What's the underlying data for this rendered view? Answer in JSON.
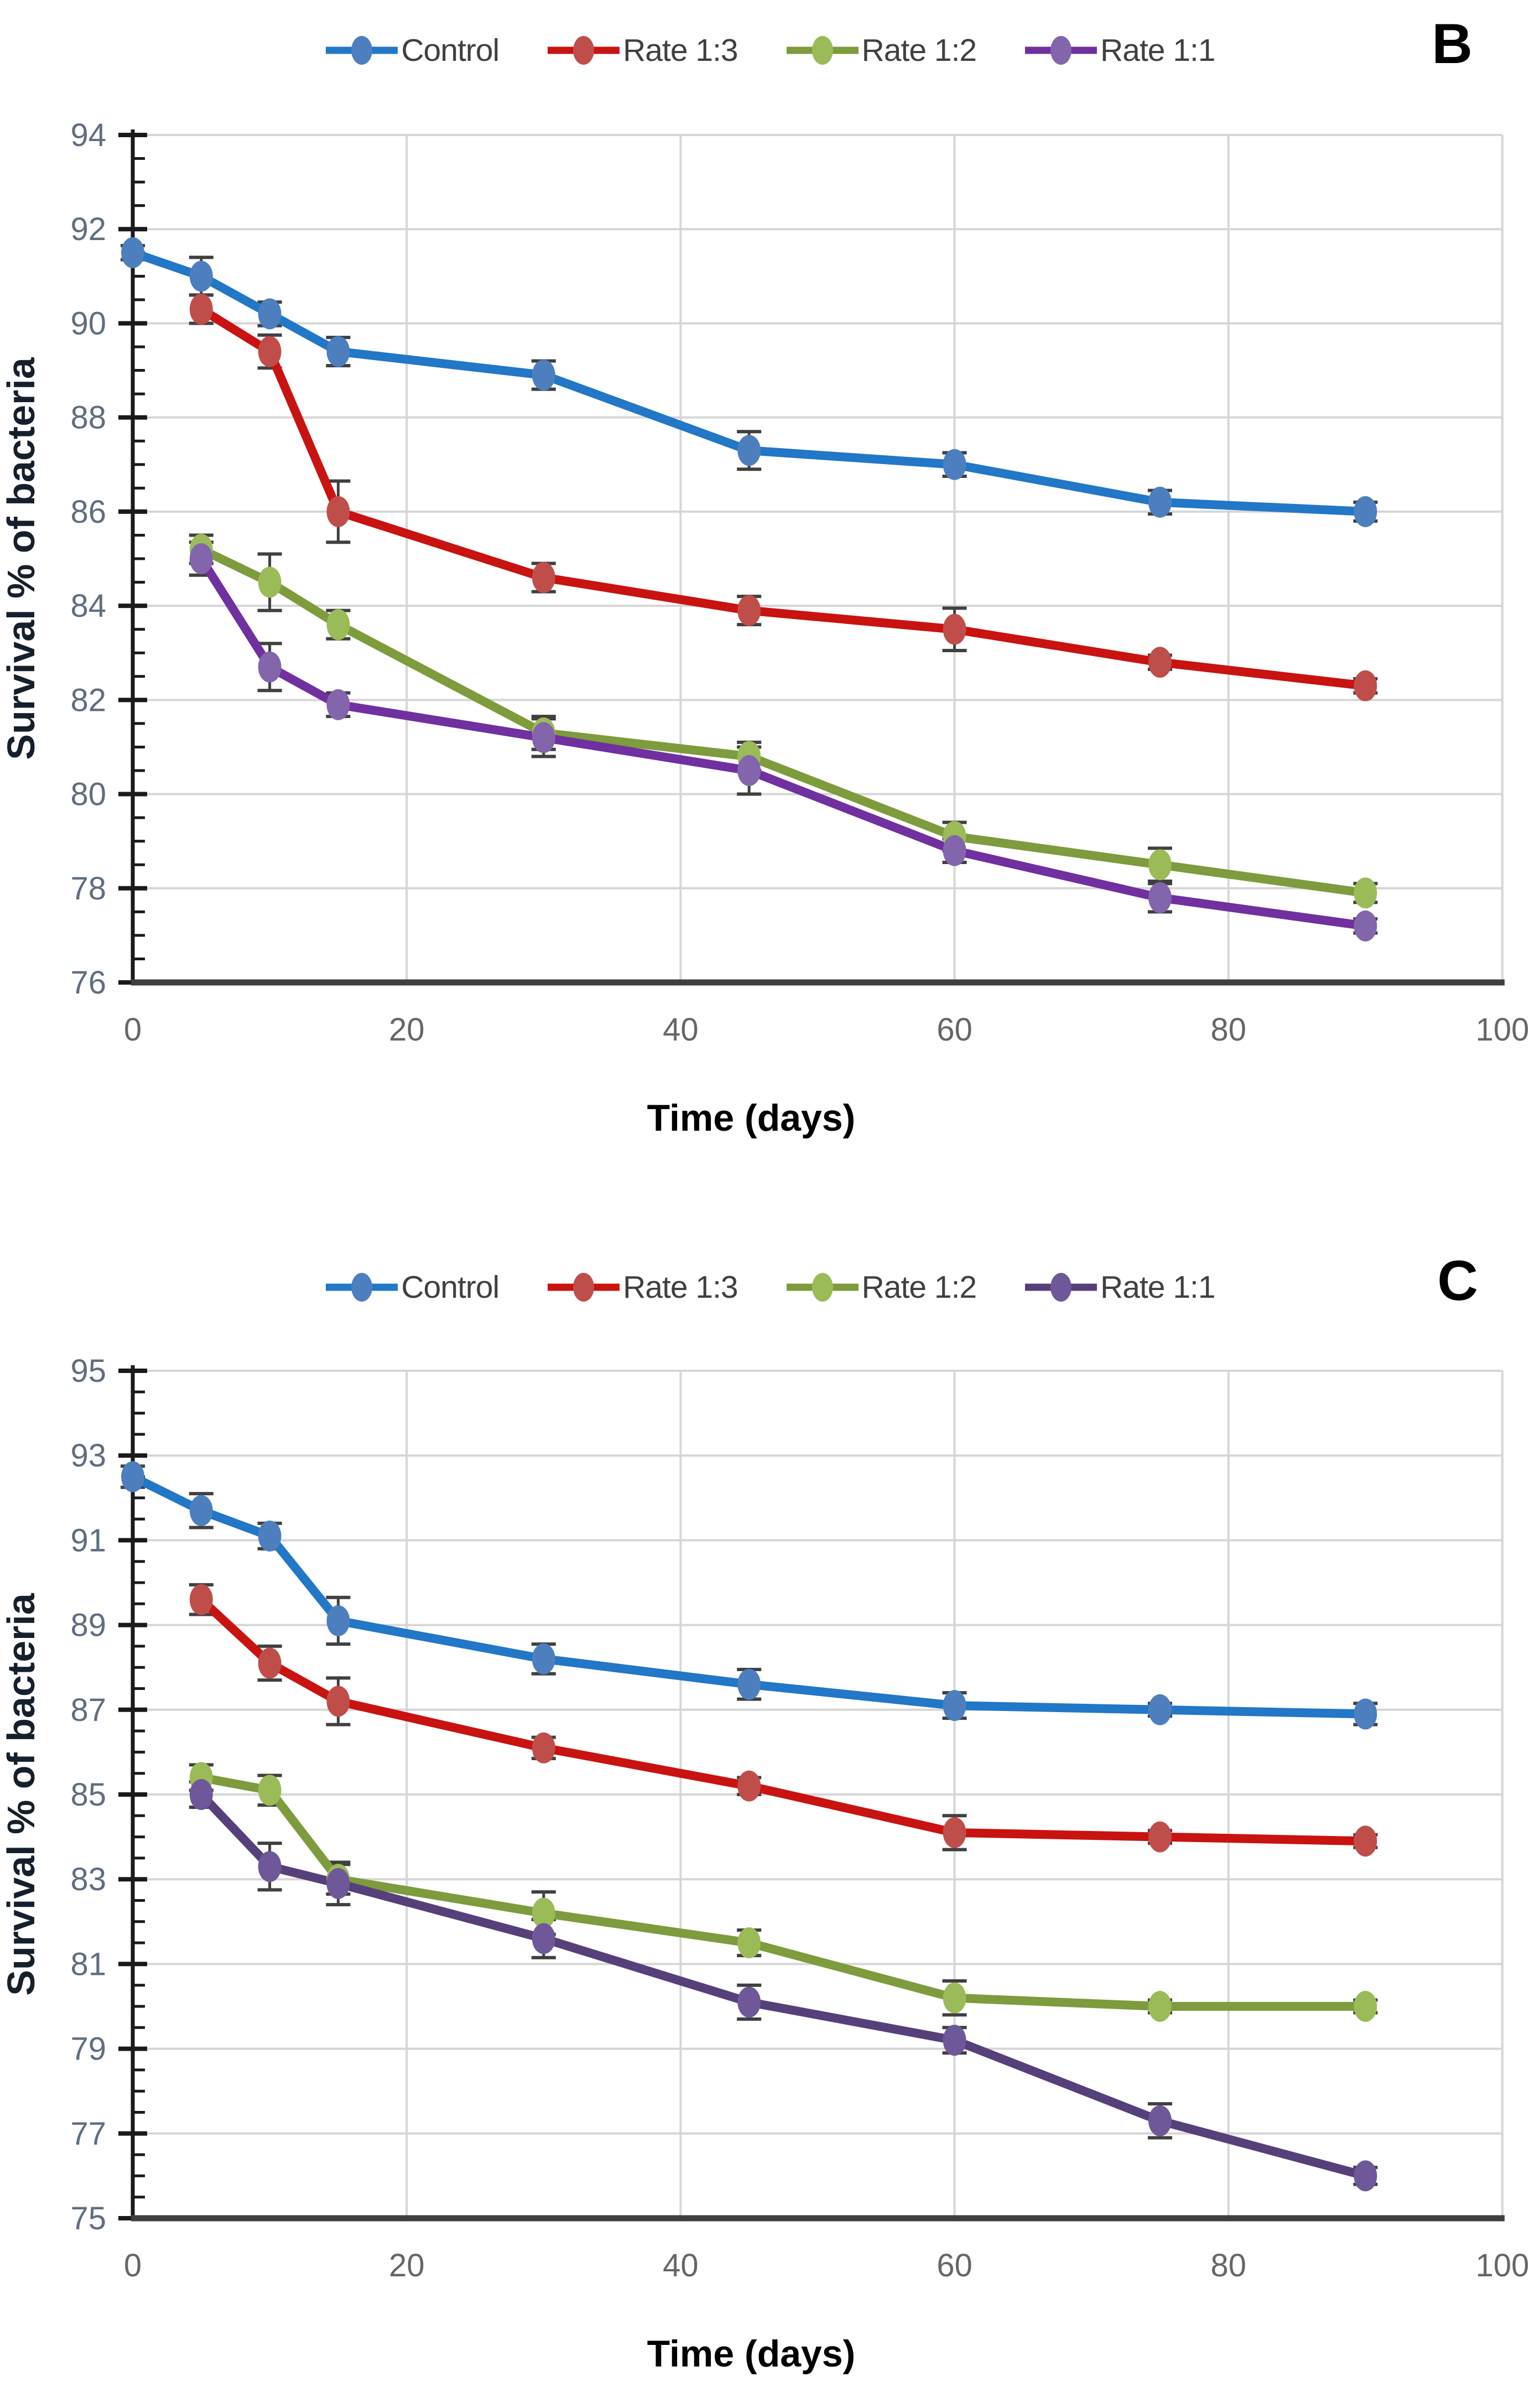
{
  "figure": {
    "ylabel": "Survival % of bacteria",
    "xlabel": "Time (days)"
  },
  "chart_data": [
    {
      "type": "line",
      "panel_label": "B",
      "title": "",
      "xlabel": "Time (days)",
      "ylabel": "Survival % of bacteria",
      "xlim": [
        0,
        100
      ],
      "ylim": [
        76,
        94
      ],
      "xticks": [
        0,
        20,
        40,
        60,
        80,
        100
      ],
      "yticks": [
        76,
        78,
        80,
        82,
        84,
        86,
        88,
        90,
        92,
        94
      ],
      "grid": true,
      "legend_position": "top-center",
      "error_bars": true,
      "series": [
        {
          "name": "Control",
          "line_color": "#2277c6",
          "marker_color": "#4d7fbe",
          "x": [
            0,
            5,
            10,
            15,
            30,
            45,
            60,
            75,
            90
          ],
          "y": [
            91.5,
            91.0,
            90.2,
            89.4,
            88.9,
            87.3,
            87.0,
            86.2,
            86.0
          ],
          "err": [
            0.15,
            0.4,
            0.25,
            0.3,
            0.3,
            0.4,
            0.25,
            0.25,
            0.2
          ]
        },
        {
          "name": "Rate 1:3",
          "line_color": "#c81311",
          "marker_color": "#bf4e4b",
          "x": [
            5,
            10,
            15,
            30,
            45,
            60,
            75,
            90
          ],
          "y": [
            90.3,
            89.4,
            86.0,
            84.6,
            83.9,
            83.5,
            82.8,
            82.3
          ],
          "err": [
            0.3,
            0.35,
            0.65,
            0.3,
            0.3,
            0.45,
            0.15,
            0.15
          ]
        },
        {
          "name": "Rate 1:2",
          "line_color": "#7e9b3d",
          "marker_color": "#9bbb59",
          "x": [
            5,
            10,
            15,
            30,
            45,
            60,
            75,
            90
          ],
          "y": [
            85.2,
            84.5,
            83.6,
            81.3,
            80.8,
            79.1,
            78.5,
            77.9
          ],
          "err": [
            0.3,
            0.6,
            0.3,
            0.35,
            0.3,
            0.3,
            0.35,
            0.2
          ]
        },
        {
          "name": "Rate 1:1",
          "line_color": "#7030a0",
          "marker_color": "#8365ab",
          "x": [
            5,
            10,
            15,
            30,
            45,
            60,
            75,
            90
          ],
          "y": [
            85.0,
            82.7,
            81.9,
            81.2,
            80.5,
            78.8,
            77.8,
            77.2
          ],
          "err": [
            0.35,
            0.5,
            0.25,
            0.4,
            0.5,
            0.25,
            0.3,
            0.15
          ]
        }
      ]
    },
    {
      "type": "line",
      "panel_label": "C",
      "title": "",
      "xlabel": "Time (days)",
      "ylabel": "Survival % of bacteria",
      "xlim": [
        0,
        100
      ],
      "ylim": [
        75,
        95
      ],
      "xticks": [
        0,
        20,
        40,
        60,
        80,
        100
      ],
      "yticks": [
        75,
        77,
        79,
        81,
        83,
        85,
        87,
        89,
        91,
        93,
        95
      ],
      "grid": true,
      "legend_position": "top-center",
      "error_bars": true,
      "series": [
        {
          "name": "Control",
          "line_color": "#2277c6",
          "marker_color": "#4d7fbe",
          "x": [
            0,
            5,
            10,
            15,
            30,
            45,
            60,
            75,
            90
          ],
          "y": [
            92.5,
            91.7,
            91.1,
            89.1,
            88.2,
            87.6,
            87.1,
            87.0,
            86.9
          ],
          "err": [
            0.25,
            0.4,
            0.3,
            0.55,
            0.35,
            0.35,
            0.3,
            0.15,
            0.25
          ]
        },
        {
          "name": "Rate 1:3",
          "line_color": "#c81311",
          "marker_color": "#bf4e4b",
          "x": [
            5,
            10,
            15,
            30,
            45,
            60,
            75,
            90
          ],
          "y": [
            89.6,
            88.1,
            87.2,
            86.1,
            85.2,
            84.1,
            84.0,
            83.9
          ],
          "err": [
            0.35,
            0.4,
            0.55,
            0.25,
            0.2,
            0.4,
            0.15,
            0.15
          ]
        },
        {
          "name": "Rate 1:2",
          "line_color": "#7e9b3d",
          "marker_color": "#9bbb59",
          "x": [
            5,
            10,
            15,
            30,
            45,
            60,
            75,
            90
          ],
          "y": [
            85.4,
            85.1,
            83.0,
            82.2,
            81.5,
            80.2,
            80.0,
            80.0
          ],
          "err": [
            0.3,
            0.35,
            0.35,
            0.5,
            0.3,
            0.4,
            0.15,
            0.15
          ]
        },
        {
          "name": "Rate 1:1",
          "line_color": "#56407a",
          "marker_color": "#6f5899",
          "x": [
            5,
            10,
            15,
            30,
            45,
            60,
            75,
            90
          ],
          "y": [
            85.0,
            83.3,
            82.9,
            81.6,
            80.1,
            79.2,
            77.3,
            76.0
          ],
          "err": [
            0.3,
            0.55,
            0.5,
            0.45,
            0.4,
            0.3,
            0.4,
            0.2
          ]
        }
      ]
    }
  ],
  "style": {
    "grid_color": "#d6d6d6",
    "axis_color": "#1a1a1a",
    "x_axis_color": "#3f3f3f",
    "error_bar_color": "#404040",
    "ytick_label_color": "#5f6e80",
    "xtick_label_color": "#666666",
    "ylabel_color": "#15202c",
    "xlabel_color": "#000000"
  }
}
